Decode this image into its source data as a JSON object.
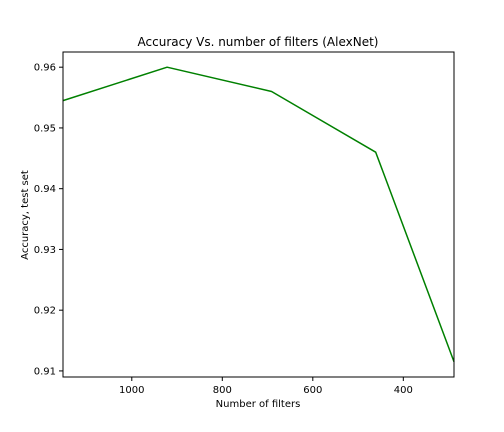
{
  "chart_data": {
    "type": "line",
    "title": "Accuracy Vs. number of filters (AlexNet)",
    "xlabel": "Number of filters",
    "ylabel": "Accuracy, test set",
    "x_inverted": true,
    "xlim": [
      1152,
      288
    ],
    "ylim": [
      0.909,
      0.9625
    ],
    "xticks": [
      1000,
      800,
      600,
      400
    ],
    "yticks": [
      0.91,
      0.92,
      0.93,
      0.94,
      0.95,
      0.96
    ],
    "xtick_labels": [
      "1000",
      "800",
      "600",
      "400"
    ],
    "ytick_labels": [
      "0.91",
      "0.92",
      "0.93",
      "0.94",
      "0.95",
      "0.96"
    ],
    "grid": false,
    "series": [
      {
        "color": "#008000",
        "x": [
          1152,
          922,
          691,
          461,
          288
        ],
        "y": [
          0.9545,
          0.96,
          0.956,
          0.946,
          0.9115
        ]
      }
    ]
  }
}
